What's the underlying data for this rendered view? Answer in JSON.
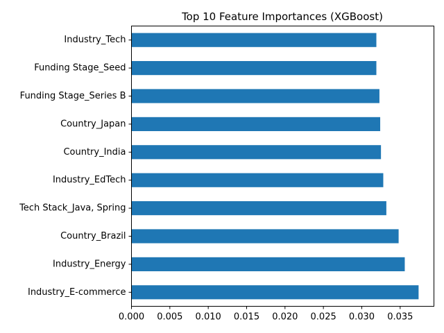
{
  "chart_data": {
    "type": "bar",
    "orientation": "horizontal",
    "title": "Top 10 Feature Importances (XGBoost)",
    "xlabel": "",
    "ylabel": "",
    "categories": [
      "Industry_Tech",
      "Funding Stage_Seed",
      "Funding Stage_Series B",
      "Country_Japan",
      "Country_India",
      "Industry_EdTech",
      "Tech Stack_Java, Spring",
      "Country_Brazil",
      "Industry_Energy",
      "Industry_E-commerce"
    ],
    "values": [
      0.0319,
      0.0319,
      0.0323,
      0.0324,
      0.0325,
      0.0328,
      0.0332,
      0.0348,
      0.0356,
      0.0374
    ],
    "xlim": [
      0,
      0.0394
    ],
    "xticks": [
      0.0,
      0.005,
      0.01,
      0.015,
      0.02,
      0.025,
      0.03,
      0.035
    ],
    "xtick_labels": [
      "0.000",
      "0.005",
      "0.010",
      "0.015",
      "0.020",
      "0.025",
      "0.030",
      "0.035"
    ],
    "bar_color": "#1f77b4",
    "grid": false,
    "legend": "none"
  }
}
